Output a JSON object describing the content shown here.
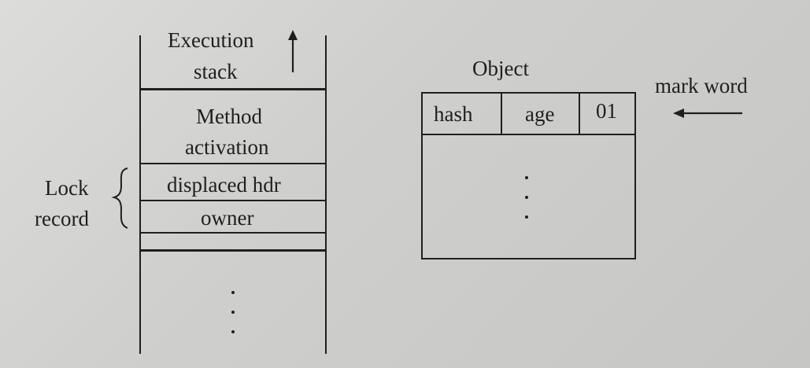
{
  "stack": {
    "execution_stack_line1": "Execution",
    "execution_stack_line2": "stack",
    "method_activation_line1": "Method",
    "method_activation_line2": "activation",
    "displaced_hdr": "displaced hdr",
    "owner": "owner"
  },
  "lock_record": {
    "line1": "Lock",
    "line2": "record"
  },
  "object": {
    "title": "Object",
    "mark_word_cells": [
      "hash",
      "age",
      "01"
    ],
    "mark_word_label": "mark word"
  }
}
